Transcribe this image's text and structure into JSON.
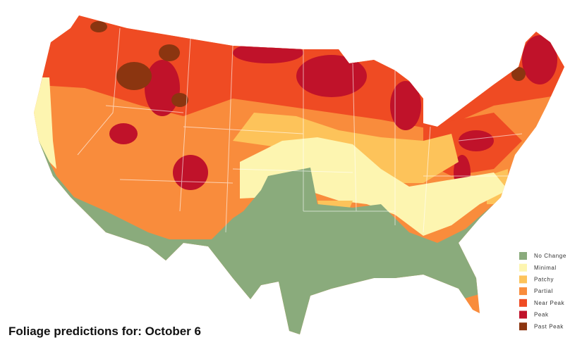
{
  "caption": "Foliage predictions for: October 6",
  "legend": [
    {
      "label": "No Change",
      "color": "#8aab7c"
    },
    {
      "label": "Minimal",
      "color": "#fdf5b0"
    },
    {
      "label": "Patchy",
      "color": "#fdc35a"
    },
    {
      "label": "Partial",
      "color": "#f98c3c"
    },
    {
      "label": "Near Peak",
      "color": "#ef4b23"
    },
    {
      "label": "Peak",
      "color": "#c0122a"
    },
    {
      "label": "Past Peak",
      "color": "#8b3510"
    }
  ]
}
